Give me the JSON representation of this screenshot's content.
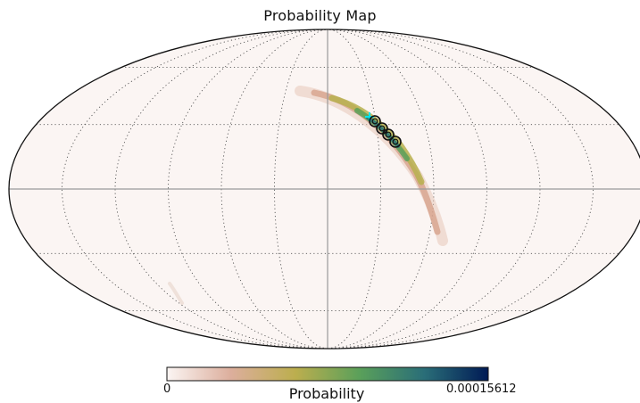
{
  "title": "Probability Map",
  "projection": "Mollweide",
  "colorbar": {
    "label": "Probability",
    "min_label": "0",
    "max_label": "0.00015612",
    "colormap": [
      "#fbf5f3",
      "#dcae9c",
      "#bcae4e",
      "#5aa05a",
      "#2a6e78",
      "#001a55"
    ]
  },
  "graticule": {
    "line_color": "#555555",
    "style": "dotted",
    "meridian_step_deg": 30,
    "parallel_step_deg": 30
  },
  "map_background": "#fbf5f3",
  "highlight_cross_color": "#00e5ee"
}
